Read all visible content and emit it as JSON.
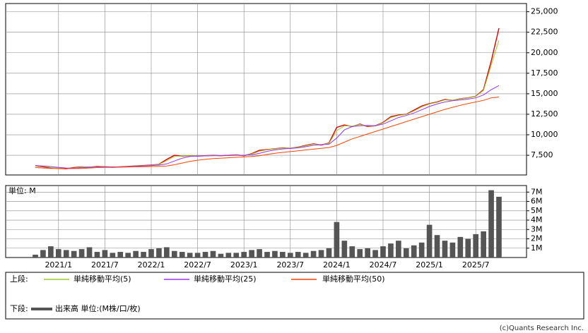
{
  "chart_data": [
    {
      "type": "line",
      "color": "#dd0000",
      "values": [
        6200,
        6100,
        5950,
        5900,
        5850,
        6000,
        6100,
        6050,
        6150,
        6100,
        6050,
        6100,
        6150,
        6200,
        6250,
        6300,
        6400,
        7000,
        7500,
        7400,
        7450,
        7400,
        7450,
        7500,
        7450,
        7500,
        7550,
        7450,
        7700,
        8100,
        8200,
        8300,
        8400,
        8350,
        8500,
        8700,
        8900,
        8750,
        9000,
        10900,
        11200,
        11000,
        11300,
        11000,
        11100,
        11500,
        12200,
        12400,
        12500,
        13000,
        13500,
        13800,
        14000,
        14300,
        14200,
        14400,
        14500,
        14700,
        15500,
        19000,
        23000
      ],
      "series": [
        {
          "name": "単純移動平均(5)",
          "color": "#9acd32",
          "values": [
            6200,
            6150,
            6000,
            5920,
            5870,
            5950,
            6080,
            6070,
            6120,
            6110,
            6070,
            6090,
            6130,
            6180,
            6230,
            6280,
            6380,
            6850,
            7350,
            7420,
            7440,
            7410,
            7440,
            7480,
            7460,
            7490,
            7530,
            7480,
            7650,
            8000,
            8170,
            8280,
            8380,
            8360,
            8470,
            8660,
            8850,
            8780,
            8950,
            10500,
            11100,
            11050,
            11250,
            11050,
            11100,
            11450,
            12100,
            12350,
            12480,
            12900,
            13400,
            13750,
            13950,
            14250,
            14220,
            14380,
            14480,
            14680,
            15400,
            18500,
            21500
          ]
        },
        {
          "name": "単純移動平均(25)",
          "color": "#9933ff",
          "values": [
            6250,
            6200,
            6120,
            6030,
            5950,
            5920,
            5980,
            6050,
            6080,
            6100,
            6090,
            6080,
            6110,
            6150,
            6200,
            6250,
            6300,
            6450,
            6800,
            7150,
            7350,
            7400,
            7420,
            7440,
            7460,
            7470,
            7500,
            7500,
            7550,
            7750,
            7980,
            8150,
            8270,
            8330,
            8400,
            8550,
            8720,
            8800,
            8850,
            9600,
            10600,
            11000,
            11100,
            11150,
            11100,
            11300,
            11700,
            12100,
            12350,
            12650,
            13050,
            13450,
            13750,
            14000,
            14150,
            14250,
            14350,
            14500,
            14850,
            15500,
            16000
          ]
        },
        {
          "name": "単純移動平均(50)",
          "color": "#ff4500",
          "values": [
            6000,
            5950,
            5900,
            5880,
            5870,
            5880,
            5900,
            5950,
            6000,
            6020,
            6040,
            6050,
            6070,
            6090,
            6110,
            6130,
            6150,
            6200,
            6350,
            6550,
            6750,
            6900,
            7000,
            7100,
            7150,
            7200,
            7250,
            7300,
            7350,
            7450,
            7600,
            7750,
            7850,
            7950,
            8050,
            8150,
            8250,
            8350,
            8450,
            8700,
            9100,
            9500,
            9800,
            10100,
            10400,
            10700,
            11000,
            11300,
            11600,
            11900,
            12200,
            12500,
            12800,
            13100,
            13350,
            13600,
            13800,
            14000,
            14200,
            14500,
            14600
          ]
        }
      ],
      "legend_label": "上段:",
      "ylim": [
        5100,
        26000
      ],
      "yticks": [
        {
          "value": 7500,
          "label": "7,500"
        },
        {
          "value": 10000,
          "label": "10,000"
        },
        {
          "value": 12500,
          "label": "12,500"
        },
        {
          "value": 15000,
          "label": "15,000"
        },
        {
          "value": 17500,
          "label": "17,500"
        },
        {
          "value": 20000,
          "label": "20,000"
        },
        {
          "value": 22500,
          "label": "22,500"
        },
        {
          "value": 25000,
          "label": "25,000"
        }
      ],
      "grid": true
    },
    {
      "type": "bar",
      "unit_label": "単位: M",
      "categories": [
        null,
        null,
        null,
        "2021/1",
        null,
        null,
        null,
        null,
        null,
        "2021/7",
        null,
        null,
        null,
        null,
        null,
        "2022/1",
        null,
        null,
        null,
        null,
        null,
        "2022/7",
        null,
        null,
        null,
        null,
        null,
        "2023/1",
        null,
        null,
        null,
        null,
        null,
        "2023/7",
        null,
        null,
        null,
        null,
        null,
        "2024/1",
        null,
        null,
        null,
        null,
        null,
        "2024/7",
        null,
        null,
        null,
        null,
        null,
        "2025/1",
        null,
        null,
        null,
        null,
        null,
        "2025/7",
        null,
        null,
        null
      ],
      "series": [
        {
          "name": "出来高 単位:(M株/口/枚)",
          "color": "#555555",
          "values": [
            0.3,
            0.8,
            1.2,
            0.9,
            0.8,
            0.7,
            0.9,
            1.1,
            0.6,
            0.8,
            0.5,
            0.6,
            0.5,
            0.7,
            0.6,
            0.9,
            1.0,
            1.1,
            0.7,
            0.6,
            0.5,
            0.5,
            0.6,
            0.7,
            0.4,
            0.5,
            0.5,
            0.6,
            0.8,
            0.9,
            0.6,
            0.7,
            0.6,
            0.5,
            0.6,
            0.5,
            0.7,
            0.8,
            1.0,
            3.8,
            1.8,
            1.2,
            0.9,
            1.0,
            0.8,
            1.2,
            1.5,
            1.8,
            1.0,
            1.3,
            1.6,
            3.5,
            2.4,
            1.8,
            1.6,
            2.2,
            2.0,
            2.5,
            2.8,
            7.2,
            6.5
          ]
        }
      ],
      "legend_label": "下段:",
      "ylim": [
        0,
        7.7
      ],
      "yticks": [
        {
          "value": 1,
          "label": "1M"
        },
        {
          "value": 2,
          "label": "2M"
        },
        {
          "value": 3,
          "label": "3M"
        },
        {
          "value": 4,
          "label": "4M"
        },
        {
          "value": 5,
          "label": "5M"
        },
        {
          "value": 6,
          "label": "6M"
        },
        {
          "value": 7,
          "label": "7M"
        }
      ],
      "grid": true
    }
  ],
  "footer": "(c)Quants Research Inc."
}
